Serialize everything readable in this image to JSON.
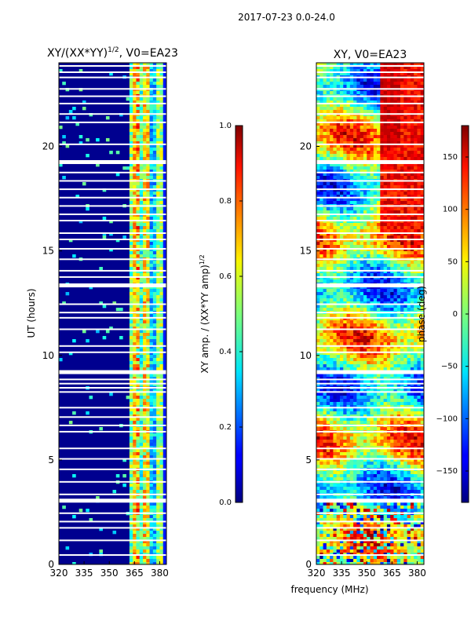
{
  "figure": {
    "suptitle": "2017-07-23 0.0-24.0",
    "shared_xlabel": "frequency (MHz)"
  },
  "chart_data": [
    {
      "type": "heatmap",
      "title": "XY/(XX*YY)^1/2, V0=EA23",
      "title_main": "XY/(XX*YY)",
      "title_exp": "1/2",
      "title_tail": ", V0=EA23",
      "ylabel": "UT (hours)",
      "xlim": [
        320,
        384
      ],
      "ylim": [
        0,
        24
      ],
      "xticks": [
        320,
        335,
        350,
        365,
        380
      ],
      "yticks": [
        0,
        5,
        10,
        15,
        20
      ],
      "colorbar": {
        "label": "XY amp. / (XX*YY amp)^1/2",
        "label_main": "XY amp. / (XX*YY amp)",
        "label_exp": "1/2",
        "range": [
          0.0,
          1.0
        ],
        "ticks": [
          "0.0",
          "0.2",
          "0.4",
          "0.6",
          "0.8",
          "1.0"
        ],
        "colormap": "jet"
      }
    },
    {
      "type": "heatmap",
      "title": "XY, V0=EA23",
      "ylabel": "",
      "xlim": [
        320,
        384
      ],
      "ylim": [
        0,
        24
      ],
      "xticks": [
        320,
        335,
        350,
        365,
        380
      ],
      "yticks": [
        0,
        5,
        10,
        15,
        20
      ],
      "colorbar": {
        "label": "phase (deg)",
        "range": [
          -180,
          180
        ],
        "ticks": [
          "−150",
          "−100",
          "−50",
          "0",
          "50",
          "100",
          "150"
        ],
        "tick_values": [
          -150,
          -100,
          -50,
          0,
          50,
          100,
          150
        ],
        "colormap": "jet"
      }
    }
  ],
  "gaps_ut_hours": [
    0.45,
    1.15,
    1.75,
    2.05,
    2.45,
    3.05,
    3.35,
    3.95,
    4.55,
    5.05,
    5.55,
    6.35,
    6.65,
    7.05,
    7.5,
    8.25,
    8.45,
    8.65,
    8.85,
    9.2,
    10.15,
    10.45,
    11.25,
    11.8,
    12.05,
    12.45,
    13.35,
    13.75,
    14.05,
    14.6,
    15.1,
    15.55,
    15.85,
    16.45,
    16.75,
    17.15,
    17.55,
    17.95,
    18.35,
    18.75,
    19.25,
    20.1,
    21.15,
    21.55,
    22.05,
    22.4,
    22.75,
    23.3,
    23.55,
    23.85
  ],
  "thick_gaps_ut_hours": [
    3.05,
    9.2,
    13.35,
    19.25
  ]
}
